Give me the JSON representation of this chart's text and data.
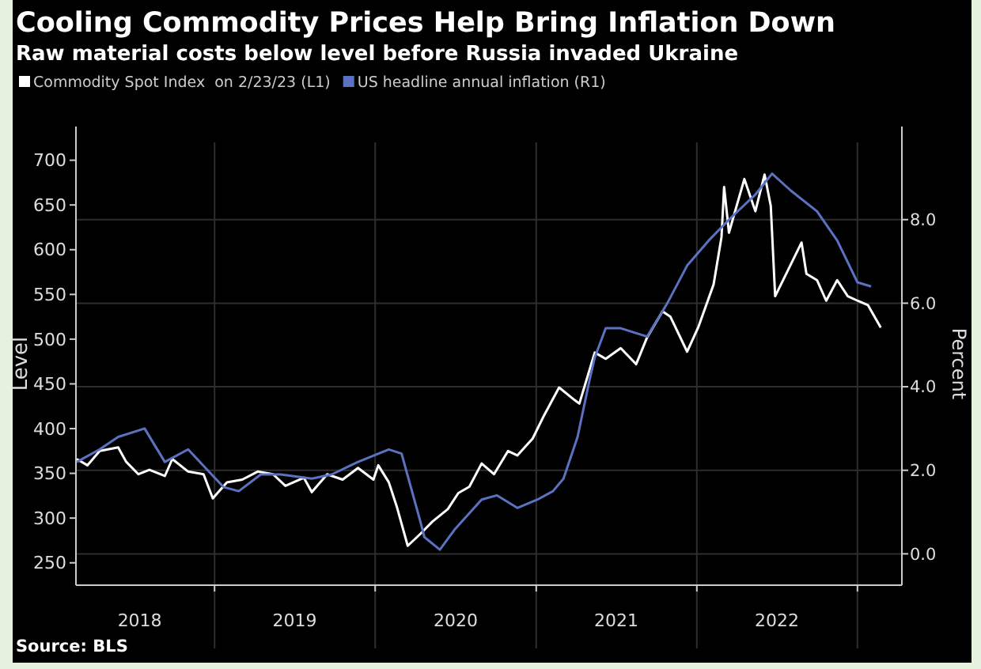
{
  "chart_data": {
    "type": "line",
    "title": "Cooling Commodity Prices Help Bring Inflation Down",
    "subtitle": "Raw material costs below level before Russia invaded Ukraine",
    "ylabel": "Level",
    "y2label": "Percent",
    "legend": "top left",
    "grid": true,
    "line_style": "solid",
    "marker": "none",
    "annotations": [
      "Source: BLS"
    ],
    "xlim": [
      "2018-02-20",
      "2023-04-12"
    ],
    "xticks": [
      {
        "value": "2018-07-15",
        "label": "2018"
      },
      {
        "value": "2019-01-01",
        "label": null
      },
      {
        "value": "2019-07-02",
        "label": "2019"
      },
      {
        "value": "2020-01-01",
        "label": null
      },
      {
        "value": "2020-07-02",
        "label": "2020"
      },
      {
        "value": "2021-01-01",
        "label": null
      },
      {
        "value": "2021-07-02",
        "label": "2021"
      },
      {
        "value": "2022-01-01",
        "label": null
      },
      {
        "value": "2022-07-02",
        "label": "2022"
      },
      {
        "value": "2023-01-01",
        "label": null
      }
    ],
    "ylim": [
      225,
      720
    ],
    "yticks": [
      250,
      300,
      350,
      400,
      450,
      500,
      550,
      600,
      650,
      700
    ],
    "y2lim": [
      -0.75,
      9.85
    ],
    "y2ticks": [
      {
        "value": 0,
        "label": "0.0"
      },
      {
        "value": 2,
        "label": "2.0"
      },
      {
        "value": 4,
        "label": "4.0"
      },
      {
        "value": 6,
        "label": "6.0"
      },
      {
        "value": 8,
        "label": "8.0"
      }
    ],
    "series": [
      {
        "name": "Commodity Spot Index  on 2/23/23 (L1)",
        "color": "#ffffff",
        "x": [
          "2018-02-22",
          "2018-03-18",
          "2018-04-15",
          "2018-05-27",
          "2018-06-14",
          "2018-07-12",
          "2018-08-06",
          "2018-09-10",
          "2018-09-27",
          "2018-11-02",
          "2018-12-07",
          "2018-12-28",
          "2019-01-29",
          "2019-03-05",
          "2019-04-09",
          "2019-05-14",
          "2019-06-11",
          "2019-07-23",
          "2019-08-10",
          "2019-09-14",
          "2019-10-19",
          "2019-11-23",
          "2019-12-28",
          "2020-01-08",
          "2020-02-01",
          "2020-02-19",
          "2020-03-15",
          "2020-04-12",
          "2020-05-10",
          "2020-06-14",
          "2020-07-08",
          "2020-08-02",
          "2020-08-30",
          "2020-09-27",
          "2020-10-29",
          "2020-11-19",
          "2020-12-24",
          "2021-01-18",
          "2021-02-22",
          "2021-03-29",
          "2021-04-09",
          "2021-05-03",
          "2021-05-14",
          "2021-06-08",
          "2021-07-12",
          "2021-08-16",
          "2021-09-10",
          "2021-10-15",
          "2021-11-02",
          "2021-12-10",
          "2022-01-04",
          "2022-02-08",
          "2022-02-26",
          "2022-03-04",
          "2022-03-15",
          "2022-04-19",
          "2022-05-14",
          "2022-06-04",
          "2022-06-18",
          "2022-06-28",
          "2022-07-23",
          "2022-08-27",
          "2022-09-07",
          "2022-10-01",
          "2022-10-22",
          "2022-11-16",
          "2022-12-10",
          "2023-01-01",
          "2023-01-25",
          "2023-02-23"
        ],
        "values": [
          366,
          359,
          375,
          379,
          363,
          349,
          354,
          347,
          366,
          352,
          349,
          322,
          340,
          343,
          352,
          349,
          336,
          345,
          329,
          349,
          343,
          356,
          343,
          359,
          340,
          313,
          269,
          282,
          296,
          310,
          328,
          335,
          361,
          349,
          375,
          370,
          389,
          414,
          446,
          432,
          428,
          467,
          485,
          478,
          490,
          472,
          502,
          531,
          525,
          486,
          513,
          561,
          614,
          670,
          619,
          679,
          643,
          684,
          649,
          548,
          573,
          608,
          573,
          566,
          543,
          566,
          548,
          543,
          538,
          513
        ]
      },
      {
        "name": "US headline annual inflation (R1)",
        "color": "#5b72c0",
        "axis": "y2",
        "x": [
          "2018-02-22",
          "2018-04-15",
          "2018-05-27",
          "2018-07-26",
          "2018-09-10",
          "2018-11-02",
          "2019-01-21",
          "2019-02-25",
          "2019-04-16",
          "2019-06-01",
          "2019-08-10",
          "2019-09-24",
          "2019-11-23",
          "2020-02-01",
          "2020-03-01",
          "2020-04-12",
          "2020-04-22",
          "2020-05-27",
          "2020-07-01",
          "2020-08-30",
          "2020-10-04",
          "2020-11-19",
          "2021-01-04",
          "2021-02-08",
          "2021-03-04",
          "2021-04-05",
          "2021-05-03",
          "2021-05-14",
          "2021-06-08",
          "2021-07-12",
          "2021-09-10",
          "2021-10-26",
          "2021-12-10",
          "2022-01-28",
          "2022-03-15",
          "2022-05-14",
          "2022-06-21",
          "2022-08-02",
          "2022-10-01",
          "2022-11-16",
          "2023-01-01",
          "2023-02-01"
        ],
        "values": [
          2.2,
          2.5,
          2.8,
          3.0,
          2.2,
          2.5,
          1.6,
          1.5,
          1.9,
          1.9,
          1.8,
          1.9,
          2.2,
          2.5,
          2.4,
          0.8,
          0.4,
          0.1,
          0.6,
          1.3,
          1.4,
          1.1,
          1.3,
          1.5,
          1.8,
          2.8,
          4.2,
          4.7,
          5.4,
          5.4,
          5.2,
          6.0,
          6.9,
          7.5,
          8.0,
          8.6,
          9.1,
          8.7,
          8.2,
          7.5,
          6.5,
          6.4
        ]
      }
    ]
  }
}
